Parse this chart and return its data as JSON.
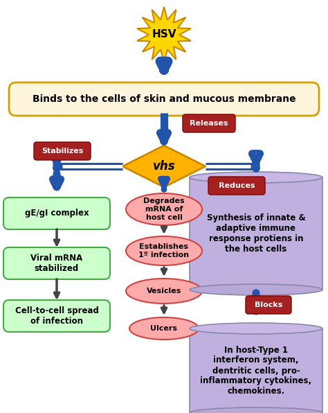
{
  "bg_color": "#ffffff",
  "hsv_star_color": "#FFD700",
  "hsv_star_outline": "#CC8800",
  "hsv_text": "HSV",
  "arrow_color": "#2255AA",
  "arrow_dark": "#444444",
  "binds_box_color": "#FFF5DC",
  "binds_box_edge": "#D4A000",
  "binds_text": "Binds to the cells of skin and mucous membrane",
  "releases_box_color": "#A52020",
  "releases_text": "Releases",
  "vhs_diamond_color": "#FFB300",
  "vhs_diamond_edge": "#CC8800",
  "vhs_text": "vhs",
  "stabilizes_text": "Stabilizes",
  "reduces_text": "Reduces",
  "blocks_text": "Blocks",
  "red_label_color": "#A52020",
  "green_box_color": "#CCFFCC",
  "green_box_edge": "#44AA44",
  "green_boxes": [
    "gE/gI complex",
    "Viral mRNA\nstabilized",
    "Cell-to-cell spread\nof infection"
  ],
  "pink_ellipse_color": "#FFAAAA",
  "pink_ellipse_edge": "#CC4444",
  "pink_ellipses": [
    "Degrades\nmRNA of\nhost cell",
    "Establishes\n1º infection",
    "Vesicles",
    "Ulcers"
  ],
  "cyl_top_color": "#C8B8E8",
  "cyl_side_color": "#C0B0E0",
  "cyl_bot_color": "#B8A8D8",
  "right_top_text": "Synthesis of innate &\nadaptive immune\nresponse protiens in\nthe host cells",
  "right_bot_text": "In host-Type 1\ninterferon system,\ndentritic cells, pro-\ninflammatory cytokines,\nchemokines."
}
